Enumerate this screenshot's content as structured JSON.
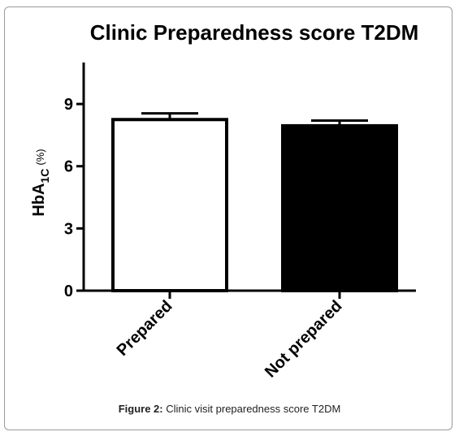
{
  "chart_data": {
    "type": "bar",
    "title": "Clinic Preparedness score T2DM",
    "ylabel": {
      "main": "HbA",
      "subscript": "1C",
      "unit": "(%)"
    },
    "xlabel": "",
    "categories": [
      "Prepared",
      "Not prepared"
    ],
    "values": [
      8.25,
      7.95
    ],
    "errors": [
      0.3,
      0.25
    ],
    "bar_fills": [
      "#ffffff",
      "#000000"
    ],
    "ylim": [
      0,
      11
    ],
    "yticks": [
      0,
      3,
      6,
      9
    ],
    "ytick_labels": [
      "0",
      "3",
      "6",
      "9"
    ],
    "grid": false,
    "legend": false
  },
  "caption": {
    "label": "Figure 2:",
    "text": "Clinic visit preparedness score T2DM"
  }
}
